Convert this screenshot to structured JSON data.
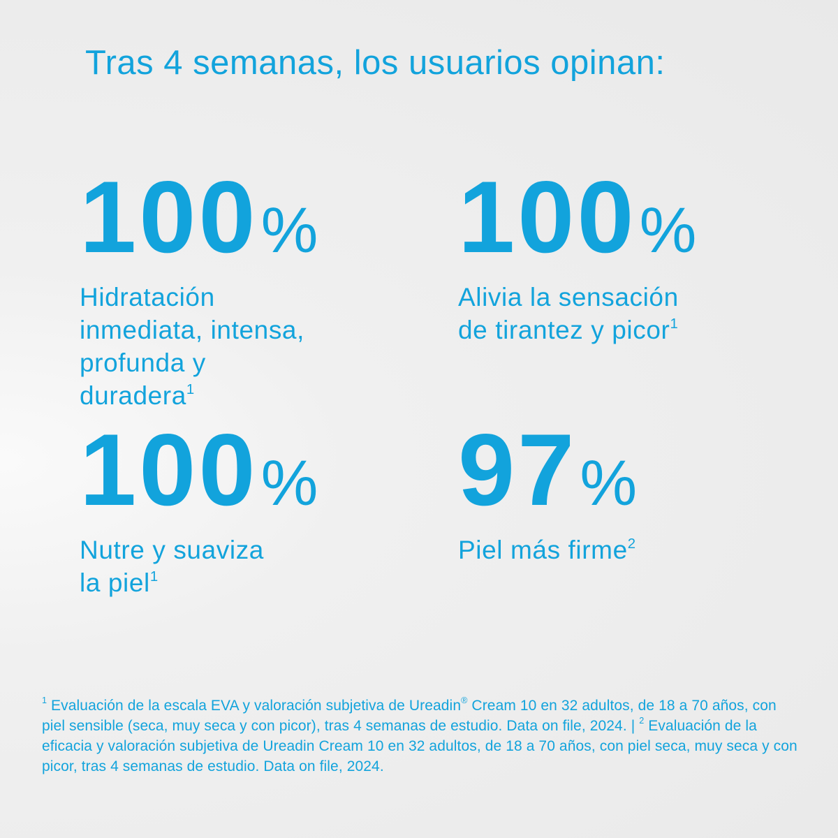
{
  "title": "Tras 4 semanas, los usuarios opinan:",
  "accent_color": "#12a3dc",
  "stats": [
    {
      "value": "100",
      "unit": "%",
      "lines": [
        "Hidratación",
        "inmediata, intensa,",
        "profunda y",
        "duradera"
      ],
      "sup": "1"
    },
    {
      "value": "100",
      "unit": "%",
      "lines": [
        "Alivia la sensación",
        "de tirantez y picor"
      ],
      "sup": "1"
    },
    {
      "value": "100",
      "unit": "%",
      "lines": [
        "Nutre y suaviza",
        "la piel"
      ],
      "sup": "1"
    },
    {
      "value": "97",
      "unit": "%",
      "lines": [
        "Piel más firme"
      ],
      "sup": "2"
    }
  ],
  "footnotes": {
    "n1": "1",
    "text1a": " Evaluación de la escala EVA y valoración subjetiva de Ureadin",
    "reg": "®",
    "text1b": " Cream 10 en 32 adultos, de 18 a 70 años, con piel sensible (seca, muy seca y con picor), tras 4 semanas de estudio. Data on file, 2024. | ",
    "n2": "2",
    "text2": " Evaluación de la eficacia y valoración subjetiva de Ureadin Cream 10 en 32 adultos, de 18 a 70 años, con piel seca, muy seca y con picor, tras 4 semanas de estudio. Data on file, 2024."
  }
}
